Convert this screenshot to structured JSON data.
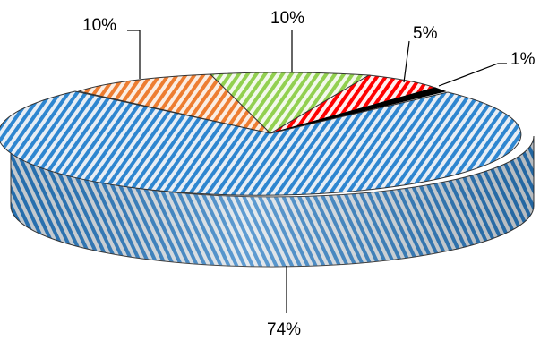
{
  "chart_data": {
    "type": "pie",
    "title": "",
    "style": "3d-exploded-pie-hatched",
    "slices": [
      {
        "value": 74,
        "label": "74%",
        "color": "#2e86d0",
        "pattern": "diagonal-stripes"
      },
      {
        "value": 10,
        "label": "10%",
        "color": "#ed7d31",
        "pattern": "diagonal-stripes"
      },
      {
        "value": 10,
        "label": "10%",
        "color": "#92d050",
        "pattern": "diagonal-stripes"
      },
      {
        "value": 5,
        "label": "5%",
        "color": "#ff0000",
        "pattern": "diagonal-stripes"
      },
      {
        "value": 1,
        "label": "1%",
        "color": "#000000",
        "pattern": "solid"
      }
    ]
  }
}
